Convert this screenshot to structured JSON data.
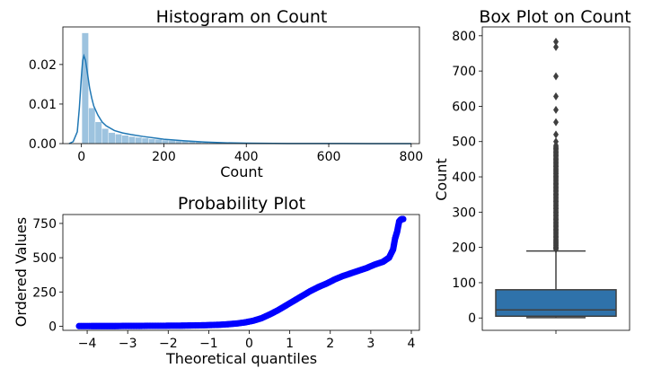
{
  "chart_data": [
    {
      "type": "histogram",
      "title": "Histogram on Count",
      "xlabel": "Count",
      "ylabel": "",
      "xlim": [
        -45,
        820
      ],
      "ylim": [
        0,
        0.0295
      ],
      "xticks": [
        0,
        200,
        400,
        600,
        800
      ],
      "yticks": [
        0.0,
        0.01,
        0.02
      ],
      "ytick_labels": [
        "0.00",
        "0.01",
        "0.02"
      ],
      "bin_width": 16.2,
      "bin_starts": [
        1,
        17.2,
        33.4,
        49.6,
        65.8,
        82,
        98.2,
        114.4,
        130.6,
        146.8,
        163,
        179.2,
        195.4,
        211.6,
        227.8,
        244,
        260.2,
        276.4,
        292.6,
        308.8,
        325,
        341.2,
        357.4,
        373.6,
        389.8,
        406,
        422.2,
        438.4,
        454.6,
        470.8,
        487,
        503.2,
        519.4,
        535.6,
        551.8,
        568,
        584.2,
        600.4,
        616.6,
        632.8,
        649,
        665.2,
        681.4,
        697.6,
        713.8,
        730,
        746.2,
        762.4,
        778.6
      ],
      "bin_density": [
        0.028,
        0.009,
        0.0055,
        0.0038,
        0.0028,
        0.0024,
        0.0021,
        0.0018,
        0.0016,
        0.0014,
        0.0012,
        0.0011,
        0.0009,
        0.0008,
        0.0007,
        0.0006,
        0.0005,
        0.0004,
        0.0003,
        0.00025,
        0.0002,
        0.00015,
        0.0001,
        8e-05,
        6e-05,
        5e-05,
        4e-05,
        3e-05,
        2e-05,
        2e-05,
        1e-05,
        1e-05,
        1e-05,
        5e-06,
        5e-06,
        5e-06,
        4e-06,
        4e-06,
        3e-06,
        3e-06,
        3e-06,
        3e-06,
        3e-06,
        2e-06,
        2e-06,
        2e-06,
        2e-06,
        2e-06,
        2e-06
      ],
      "kde": {
        "x": [
          -30,
          -20,
          -10,
          -5,
          0,
          3,
          6,
          10,
          15,
          20,
          25,
          30,
          40,
          50,
          60,
          80,
          100,
          120,
          150,
          180,
          200,
          250,
          300,
          350,
          400,
          500,
          600,
          700,
          800
        ],
        "y": [
          0,
          0.0005,
          0.003,
          0.009,
          0.017,
          0.021,
          0.0222,
          0.021,
          0.0175,
          0.014,
          0.0115,
          0.0095,
          0.0072,
          0.0055,
          0.0045,
          0.0033,
          0.0027,
          0.0023,
          0.0018,
          0.0014,
          0.0011,
          0.0007,
          0.0004,
          0.0002,
          0.0001,
          3e-05,
          2e-05,
          1e-05,
          1e-05
        ]
      },
      "colors": {
        "bars": "#9dc3df",
        "kde": "#1f77b4"
      }
    },
    {
      "type": "scatter",
      "title": "Probability Plot",
      "xlabel": "Theoretical quantiles",
      "ylabel": "Ordered Values",
      "xlim": [
        -4.6,
        4.2
      ],
      "ylim": [
        -30,
        815
      ],
      "xticks": [
        -4,
        -3,
        -2,
        -1,
        0,
        1,
        2,
        3,
        4
      ],
      "yticks": [
        0,
        250,
        500,
        750
      ],
      "points": {
        "x": [
          -4.2,
          -3.9,
          -3.7,
          -3.5,
          -3.3,
          -3.1,
          -2.9,
          -2.7,
          -2.5,
          -2.3,
          -2.1,
          -1.9,
          -1.7,
          -1.5,
          -1.3,
          -1.1,
          -0.9,
          -0.7,
          -0.5,
          -0.3,
          -0.1,
          0.1,
          0.3,
          0.5,
          0.7,
          0.9,
          1.1,
          1.3,
          1.5,
          1.7,
          1.9,
          2.1,
          2.3,
          2.5,
          2.7,
          2.9,
          3.1,
          3.3,
          3.45,
          3.55,
          3.6,
          3.65,
          3.7,
          3.75,
          3.8
        ],
        "y": [
          1,
          1,
          1,
          1,
          1,
          2,
          2,
          2,
          3,
          3,
          3,
          4,
          4,
          5,
          6,
          7,
          9,
          11,
          15,
          20,
          28,
          40,
          58,
          85,
          115,
          150,
          185,
          220,
          255,
          285,
          310,
          340,
          365,
          385,
          405,
          425,
          450,
          470,
          500,
          560,
          640,
          690,
          765,
          780,
          782
        ]
      },
      "colors": {
        "points": "#0000ff"
      }
    },
    {
      "type": "box",
      "title": "Box Plot on Count",
      "xlabel": "",
      "ylabel": "Count",
      "ylim": [
        -35,
        825
      ],
      "yticks": [
        0,
        100,
        200,
        300,
        400,
        500,
        600,
        700,
        800
      ],
      "box": {
        "q1": 5,
        "median": 23,
        "q3": 80,
        "whisker_low": 1,
        "whisker_high": 190
      },
      "outliers": [
        195,
        198,
        200,
        205,
        210,
        215,
        220,
        230,
        240,
        250,
        260,
        270,
        280,
        290,
        300,
        310,
        320,
        330,
        340,
        350,
        360,
        370,
        380,
        390,
        400,
        410,
        420,
        430,
        440,
        450,
        460,
        470,
        480,
        500,
        520,
        555,
        590,
        628,
        685,
        768,
        783
      ],
      "colors": {
        "box": "#2f72aa",
        "line": "#3f3f3f"
      }
    }
  ]
}
